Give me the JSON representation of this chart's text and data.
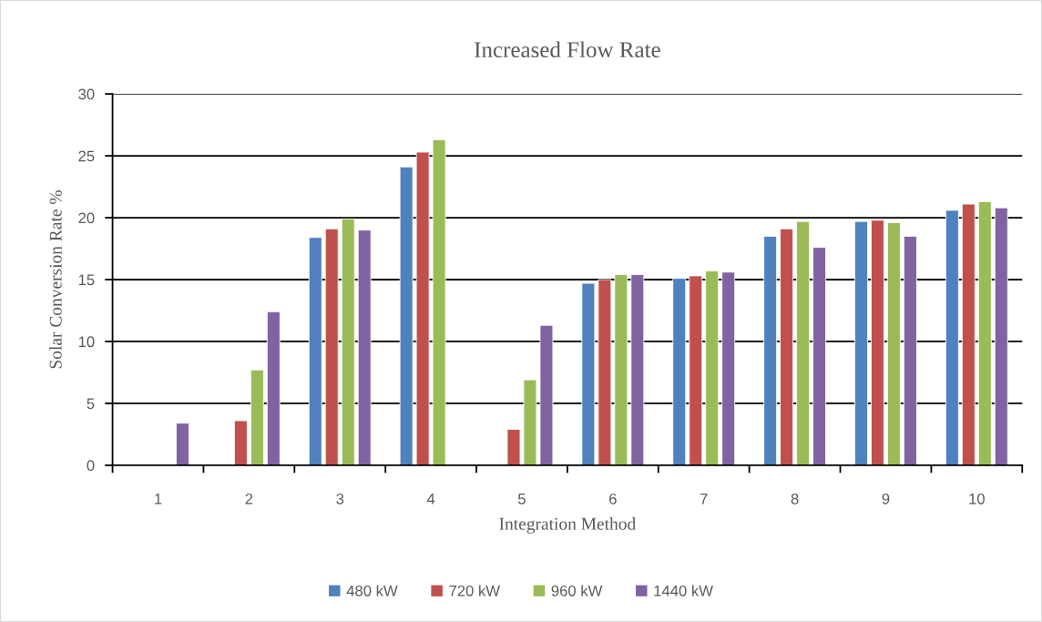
{
  "chart_data": {
    "type": "bar",
    "title": "Increased Flow Rate",
    "xlabel": "Integration Method",
    "ylabel": "Solar Conversion Rate %",
    "categories": [
      "1",
      "2",
      "3",
      "4",
      "5",
      "6",
      "7",
      "8",
      "9",
      "10"
    ],
    "series": [
      {
        "name": "480 kW",
        "color": "#4f81bd",
        "values": [
          null,
          null,
          18.4,
          24.1,
          null,
          14.7,
          15.1,
          18.5,
          19.7,
          20.6
        ]
      },
      {
        "name": "720 kW",
        "color": "#c0504d",
        "values": [
          null,
          3.6,
          19.1,
          25.3,
          2.9,
          15.0,
          15.3,
          19.1,
          19.8,
          21.1
        ]
      },
      {
        "name": "960 kW",
        "color": "#9bbb59",
        "values": [
          null,
          7.7,
          19.9,
          26.3,
          6.9,
          15.4,
          15.7,
          19.7,
          19.6,
          21.3
        ]
      },
      {
        "name": "1440 kW",
        "color": "#8064a2",
        "values": [
          3.4,
          12.4,
          19.0,
          null,
          11.3,
          15.4,
          15.6,
          17.6,
          18.5,
          20.8
        ]
      }
    ],
    "ylim": [
      0,
      30
    ],
    "yticks": [
      0,
      5,
      10,
      15,
      20,
      25,
      30
    ],
    "grid": "y",
    "legend": "bottom"
  }
}
